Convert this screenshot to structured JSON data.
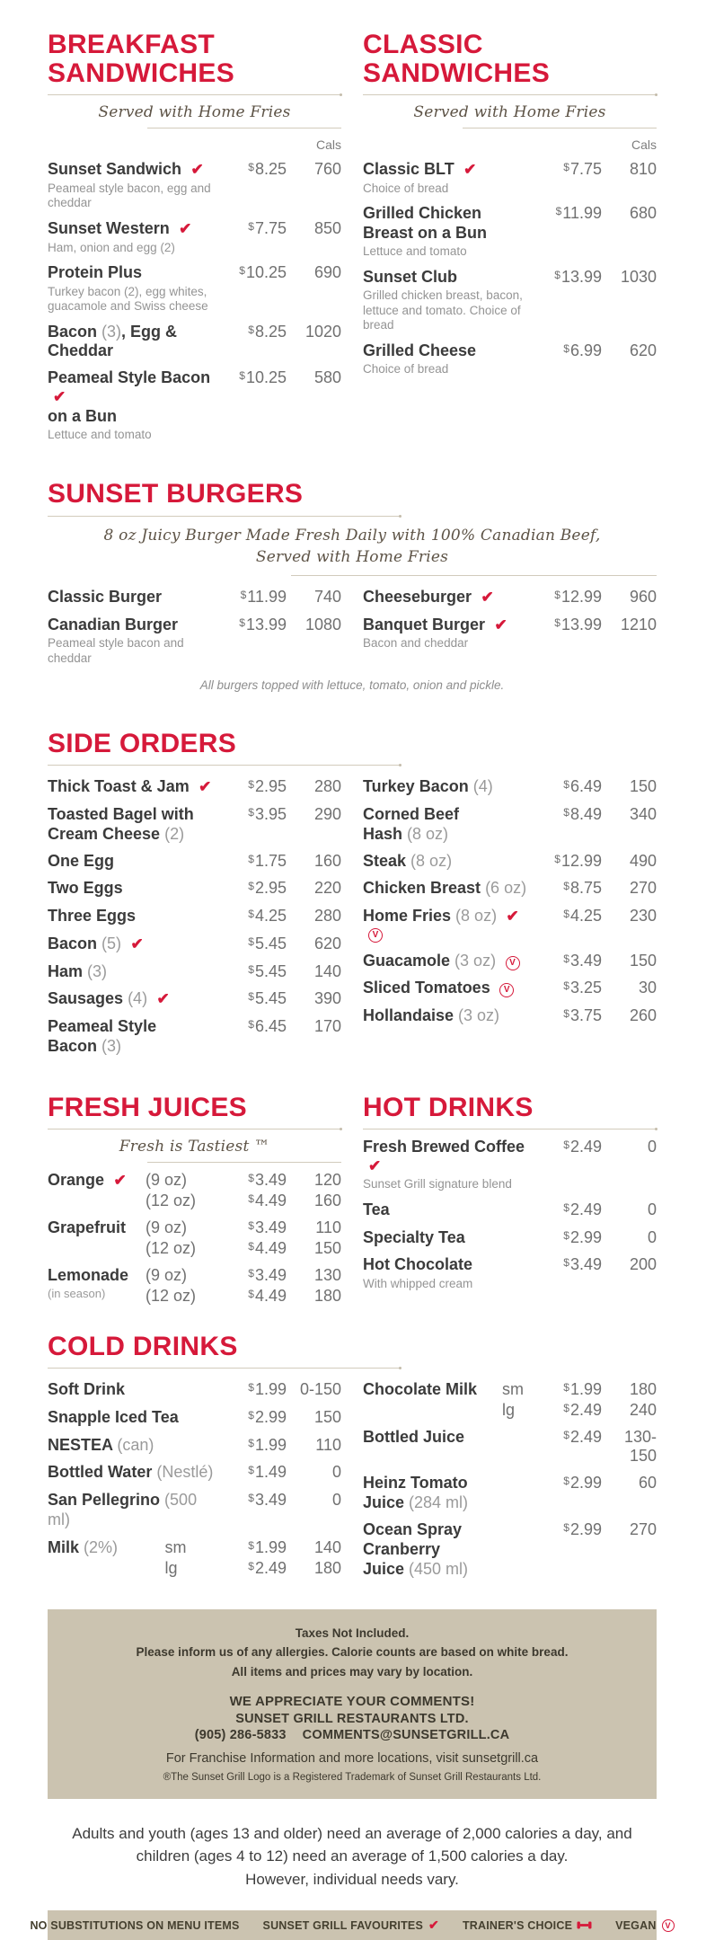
{
  "currency": "$",
  "cals_label": "Cals",
  "icons": {
    "check_glyph": "✔",
    "vegan_letter": "V"
  },
  "colors": {
    "accent_red": "#d6193a",
    "tan_band": "#cbc3b0",
    "item_text": "#3b3b3b",
    "price_text": "#707070"
  },
  "sections": {
    "breakfast": {
      "title": "BREAKFAST SANDWICHES",
      "subtitle": "Served with Home Fries",
      "items": [
        {
          "name": "Sunset Sandwich",
          "flags": [
            "fav"
          ],
          "price": "8.25",
          "cals": "760",
          "desc": "Peameal style bacon, egg and cheddar"
        },
        {
          "name": "Sunset Western",
          "flags": [
            "fav"
          ],
          "price": "7.75",
          "cals": "850",
          "desc": "Ham, onion and egg (2)"
        },
        {
          "name": "Protein Plus",
          "price": "10.25",
          "cals": "690",
          "desc": "Turkey bacon (2), egg whites, guacamole and Swiss cheese"
        },
        {
          "name": "Bacon (3), Egg &",
          "name2": "Cheddar",
          "price": "8.25",
          "cals": "1020"
        },
        {
          "name": "Peameal Style Bacon",
          "name2": "on a Bun",
          "flags": [
            "fav"
          ],
          "price": "10.25",
          "cals": "580",
          "desc": "Lettuce and tomato"
        }
      ]
    },
    "classic": {
      "title": "CLASSIC SANDWICHES",
      "subtitle": "Served with Home Fries",
      "items": [
        {
          "name": "Classic BLT",
          "flags": [
            "fav"
          ],
          "price": "7.75",
          "cals": "810",
          "desc": "Choice of bread"
        },
        {
          "name": "Grilled Chicken",
          "name2": "Breast on a Bun",
          "price": "11.99",
          "cals": "680",
          "desc": "Lettuce and tomato"
        },
        {
          "name": "Sunset Club",
          "price": "13.99",
          "cals": "1030",
          "desc": "Grilled chicken breast, bacon, lettuce and tomato. Choice of bread"
        },
        {
          "name": "Grilled Cheese",
          "price": "6.99",
          "cals": "620",
          "desc": "Choice of bread"
        }
      ]
    },
    "burgers": {
      "title": "SUNSET BURGERS",
      "tagline_line1": "8 oz Juicy Burger Made Fresh Daily with 100% Canadian Beef,",
      "tagline_line2": "Served with Home Fries",
      "left": [
        {
          "name": "Classic Burger",
          "price": "11.99",
          "cals": "740"
        },
        {
          "name": "Canadian Burger",
          "price": "13.99",
          "cals": "1080",
          "desc": "Peameal style bacon and cheddar"
        }
      ],
      "right": [
        {
          "name": "Cheeseburger",
          "flags": [
            "fav"
          ],
          "price": "12.99",
          "cals": "960"
        },
        {
          "name": "Banquet Burger",
          "flags": [
            "fav"
          ],
          "price": "13.99",
          "cals": "1210",
          "desc": "Bacon and cheddar"
        }
      ],
      "note": "All burgers topped with lettuce, tomato, onion and pickle."
    },
    "sides": {
      "title": "SIDE ORDERS",
      "left": [
        {
          "name": "Thick Toast & Jam",
          "flags": [
            "fav"
          ],
          "price": "2.95",
          "cals": "280"
        },
        {
          "name": "Toasted Bagel with",
          "name2": "Cream Cheese (2)",
          "price": "3.95",
          "cals": "290"
        },
        {
          "name": "One Egg",
          "price": "1.75",
          "cals": "160"
        },
        {
          "name": "Two Eggs",
          "price": "2.95",
          "cals": "220"
        },
        {
          "name": "Three Eggs",
          "price": "4.25",
          "cals": "280"
        },
        {
          "name": "Bacon (5)",
          "flags": [
            "fav"
          ],
          "price": "5.45",
          "cals": "620"
        },
        {
          "name": "Ham (3)",
          "price": "5.45",
          "cals": "140"
        },
        {
          "name": "Sausages (4)",
          "flags": [
            "fav"
          ],
          "price": "5.45",
          "cals": "390"
        },
        {
          "name": "Peameal Style",
          "name2": "Bacon (3)",
          "price": "6.45",
          "cals": "170"
        }
      ],
      "right": [
        {
          "name": "Turkey Bacon (4)",
          "price": "6.49",
          "cals": "150"
        },
        {
          "name": "Corned Beef",
          "name2": "Hash (8 oz)",
          "price": "8.49",
          "cals": "340"
        },
        {
          "name": "Steak (8 oz)",
          "price": "12.99",
          "cals": "490"
        },
        {
          "name": "Chicken Breast (6 oz)",
          "price": "8.75",
          "cals": "270"
        },
        {
          "name": "Home Fries (8 oz)",
          "flags": [
            "fav",
            "vegan"
          ],
          "price": "4.25",
          "cals": "230"
        },
        {
          "name": "Guacamole (3 oz)",
          "flags": [
            "vegan"
          ],
          "price": "3.49",
          "cals": "150"
        },
        {
          "name": "Sliced Tomatoes",
          "flags": [
            "vegan"
          ],
          "price": "3.25",
          "cals": "30"
        },
        {
          "name": "Hollandaise (3 oz)",
          "price": "3.75",
          "cals": "260"
        }
      ]
    },
    "juices": {
      "title": "FRESH JUICES",
      "subtitle": "Fresh is Tastiest ™",
      "items": [
        {
          "name": "Orange",
          "flags": [
            "fav"
          ],
          "rows": [
            {
              "size": "(9 oz)",
              "price": "3.49",
              "cals": "120"
            },
            {
              "size": "(12 oz)",
              "price": "4.49",
              "cals": "160"
            }
          ]
        },
        {
          "name": "Grapefruit",
          "rows": [
            {
              "size": "(9 oz)",
              "price": "3.49",
              "cals": "110"
            },
            {
              "size": "(12 oz)",
              "price": "4.49",
              "cals": "150"
            }
          ]
        },
        {
          "name": "Lemonade",
          "sub": "(in season)",
          "rows": [
            {
              "size": "(9 oz)",
              "price": "3.49",
              "cals": "130"
            },
            {
              "size": "(12 oz)",
              "price": "4.49",
              "cals": "180"
            }
          ]
        }
      ]
    },
    "hot": {
      "title": "HOT DRINKS",
      "items": [
        {
          "name": "Fresh Brewed Coffee",
          "flags": [
            "fav"
          ],
          "price": "2.49",
          "cals": "0",
          "desc": "Sunset Grill signature blend"
        },
        {
          "name": "Tea",
          "price": "2.49",
          "cals": "0"
        },
        {
          "name": "Specialty Tea",
          "price": "2.99",
          "cals": "0"
        },
        {
          "name": "Hot Chocolate",
          "price": "3.49",
          "cals": "200",
          "desc": "With whipped cream"
        }
      ]
    },
    "cold": {
      "title": "COLD DRINKS",
      "left": [
        {
          "name": "Soft Drink",
          "price": "1.99",
          "cals": "0-150"
        },
        {
          "name": "Snapple Iced Tea",
          "price": "2.99",
          "cals": "150"
        },
        {
          "name": "NESTEA (can)",
          "price": "1.99",
          "cals": "110"
        },
        {
          "name": "Bottled Water (Nestlé)",
          "price": "1.49",
          "cals": "0"
        },
        {
          "name": "San Pellegrino (500 ml)",
          "price": "3.49",
          "cals": "0"
        },
        {
          "name": "Milk (2%)",
          "rows": [
            {
              "size": "sm",
              "price": "1.99",
              "cals": "140"
            },
            {
              "size": "lg",
              "price": "2.49",
              "cals": "180"
            }
          ]
        }
      ],
      "right": [
        {
          "name": "Chocolate Milk",
          "rows": [
            {
              "size": "sm",
              "price": "1.99",
              "cals": "180"
            },
            {
              "size": "lg",
              "price": "2.49",
              "cals": "240"
            }
          ]
        },
        {
          "name": "Bottled Juice",
          "price": "2.49",
          "cals": "130-150"
        },
        {
          "name": "Heinz Tomato",
          "name2": "Juice (284 ml)",
          "price": "2.99",
          "cals": "60"
        },
        {
          "name": "Ocean Spray Cranberry",
          "name2": "Juice (450 ml)",
          "price": "2.99",
          "cals": "270"
        }
      ]
    }
  },
  "notice_box": {
    "line1": "Taxes Not Included.",
    "line2": "Please inform us of any allergies. Calorie counts are based on white bread.",
    "line3": "All items and prices may vary by location.",
    "comments_heading": "WE APPRECIATE YOUR COMMENTS!",
    "company": "SUNSET GRILL RESTAURANTS LTD.",
    "phone": "(905) 286-5833",
    "email": "COMMENTS@SUNSETGRILL.CA",
    "franchise": "For Franchise Information and more locations, visit sunsetgrill.ca",
    "trademark": "®The Sunset Grill Logo is a Registered Trademark of Sunset Grill Restaurants Ltd."
  },
  "calorie_note": {
    "line1": "Adults and youth (ages 13 and older) need an average of 2,000 calories a day, and",
    "line2": "children (ages 4 to 12) need an average of 1,500 calories a day.",
    "line3": "However, individual needs vary."
  },
  "legend": {
    "no_substitutions": "NO SUBSTITUTIONS ON MENU ITEMS",
    "favourites": "SUNSET GRILL FAVOURITES",
    "trainers_choice": "TRAINER'S CHOICE",
    "vegan": "VEGAN"
  }
}
